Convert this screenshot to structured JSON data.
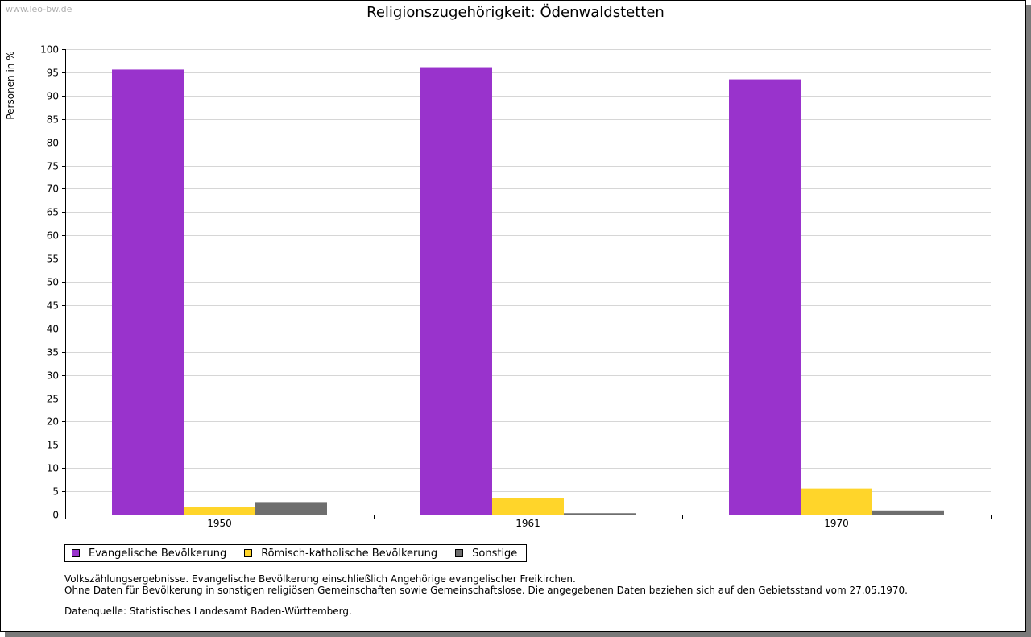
{
  "watermark": "www.leo-bw.de",
  "chart_data": {
    "type": "bar",
    "title": "Religionszugehörigkeit: Ödenwaldstetten",
    "xlabel": "",
    "ylabel": "Personen in %",
    "ylim": [
      0,
      100
    ],
    "ytick_step": 5,
    "grid": true,
    "categories": [
      "1950",
      "1961",
      "1970"
    ],
    "series": [
      {
        "name": "Evangelische Bevölkerung",
        "color": "#9933cc",
        "values": [
          95.6,
          96.1,
          93.5
        ]
      },
      {
        "name": "Römisch-katholische Bevölkerung",
        "color": "#ffd52a",
        "values": [
          1.7,
          3.6,
          5.6
        ]
      },
      {
        "name": "Sonstige",
        "color": "#6e6e6e",
        "values": [
          2.7,
          0.3,
          0.9
        ]
      }
    ],
    "legend_position": "bottom-left"
  },
  "notes": {
    "line1": "Volkszählungsergebnisse. Evangelische Bevölkerung einschließlich Angehörige evangelischer Freikirchen.",
    "line2": "Ohne Daten für Bevölkerung in sonstigen religiösen Gemeinschaften sowie Gemeinschaftslose. Die angegebenen Daten beziehen sich auf den Gebietsstand vom 27.05.1970.",
    "source": "Datenquelle: Statistisches Landesamt Baden-Württemberg."
  }
}
